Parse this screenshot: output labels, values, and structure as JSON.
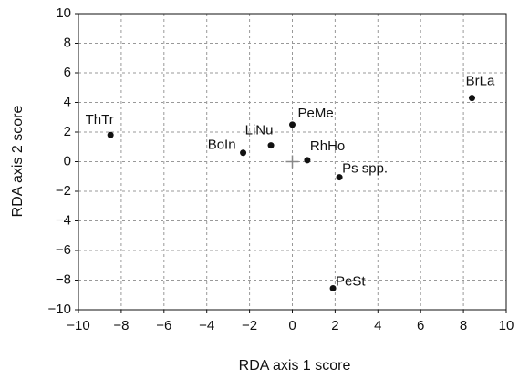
{
  "chart_data": {
    "type": "scatter",
    "x_label": "RDA axis 1 score",
    "y_label": "RDA axis 2 score",
    "point_labels": [
      "ThTr",
      "BoIn",
      "LiNu",
      "PeMe",
      "RhHo",
      "Ps spp.",
      "BrLa",
      "PeSt"
    ],
    "x": [
      -8.5,
      -2.3,
      -1.0,
      0.0,
      0.7,
      2.2,
      8.4,
      1.9
    ],
    "values": [
      1.8,
      0.6,
      1.1,
      2.5,
      0.1,
      -1.05,
      4.3,
      -8.55
    ],
    "color": "#111111",
    "xlim": [
      -10,
      10
    ],
    "ylim": [
      -10,
      10
    ],
    "xticks": [
      {
        "value": -10,
        "label": "−10"
      },
      {
        "value": -8,
        "label": "−8"
      },
      {
        "value": -6,
        "label": "−6"
      },
      {
        "value": -4,
        "label": "−4"
      },
      {
        "value": -2,
        "label": "−2"
      },
      0,
      2,
      4,
      6,
      8,
      10
    ],
    "yticks": [
      {
        "value": -10,
        "label": "−10"
      },
      {
        "value": -8,
        "label": "−8"
      },
      {
        "value": -6,
        "label": "−6"
      },
      {
        "value": -4,
        "label": "−4"
      },
      {
        "value": -2,
        "label": "−2"
      },
      0,
      2,
      4,
      6,
      8,
      10
    ],
    "grid": true
  }
}
